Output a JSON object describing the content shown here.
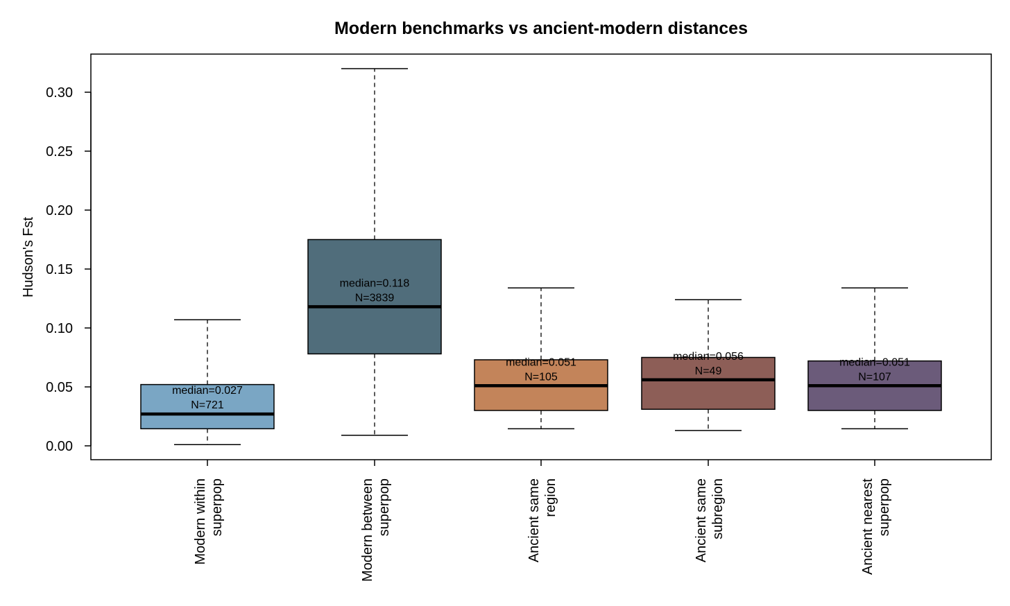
{
  "chart_data": {
    "type": "boxplot",
    "title": "Modern benchmarks vs ancient-modern distances",
    "ylabel": "Hudson's Fst",
    "xlabel": "",
    "ylim": [
      -0.012,
      0.332
    ],
    "yticks": [
      "0.00",
      "0.05",
      "0.10",
      "0.15",
      "0.20",
      "0.25",
      "0.30"
    ],
    "ytick_values": [
      0.0,
      0.05,
      0.1,
      0.15,
      0.2,
      0.25,
      0.3
    ],
    "grid": false,
    "categories": [
      [
        "Modern within",
        "superpop"
      ],
      [
        "Modern between",
        "superpop"
      ],
      [
        "Ancient same",
        "region"
      ],
      [
        "Ancient same",
        "subregion"
      ],
      [
        "Ancient nearest",
        "superpop"
      ]
    ],
    "boxes": [
      {
        "whisker_low": 0.001,
        "q1": 0.0145,
        "median": 0.027,
        "q3": 0.052,
        "whisker_high": 0.107,
        "fill": "#7aa6c4",
        "median_label": "median=0.027",
        "n_label": "N=721"
      },
      {
        "whisker_low": 0.009,
        "q1": 0.078,
        "median": 0.118,
        "q3": 0.175,
        "whisker_high": 0.32,
        "fill": "#506d7b",
        "median_label": "median=0.118",
        "n_label": "N=3839"
      },
      {
        "whisker_low": 0.0145,
        "q1": 0.03,
        "median": 0.051,
        "q3": 0.073,
        "whisker_high": 0.134,
        "fill": "#c3845a",
        "median_label": "median=0.051",
        "n_label": "N=105"
      },
      {
        "whisker_low": 0.013,
        "q1": 0.031,
        "median": 0.056,
        "q3": 0.075,
        "whisker_high": 0.124,
        "fill": "#8d5e57",
        "median_label": "median=0.056",
        "n_label": "N=49"
      },
      {
        "whisker_low": 0.0145,
        "q1": 0.03,
        "median": 0.051,
        "q3": 0.072,
        "whisker_high": 0.134,
        "fill": "#6b5b7a",
        "median_label": "median=0.051",
        "n_label": "N=107"
      }
    ]
  }
}
